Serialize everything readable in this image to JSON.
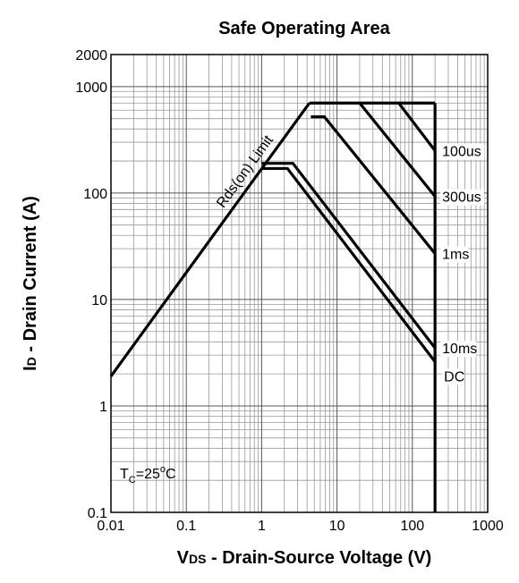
{
  "chart_data": {
    "type": "line",
    "title": "Safe Operating Area",
    "xlabel": [
      "V",
      "DS",
      " - Drain-Source Voltage (V)"
    ],
    "ylabel": [
      "I",
      "D",
      " - Drain Current (A)"
    ],
    "annotation": [
      "T",
      "C",
      "=25",
      "o",
      "C"
    ],
    "log_x": true,
    "log_y": true,
    "grid": true,
    "minor_grid": true,
    "color": "#000000",
    "xlim": [
      0.01,
      1000
    ],
    "xticks": [
      0.01,
      0.1,
      1,
      10,
      100,
      1000
    ],
    "ylim": [
      0.1,
      2000
    ],
    "yticks": [
      0.1,
      1,
      10,
      100,
      1000,
      2000
    ],
    "series": [
      {
        "name": "Rds(on) Limit",
        "x": [
          0.01,
          4.3
        ],
        "values": [
          1.9,
          700
        ]
      },
      {
        "name": "100us",
        "x": [
          4.3,
          66,
          200
        ],
        "values": [
          700,
          700,
          250
        ]
      },
      {
        "x": [
          66,
          200
        ],
        "values": [
          700,
          700
        ]
      },
      {
        "name": "300us",
        "x": [
          20,
          200
        ],
        "values": [
          700,
          93
        ]
      },
      {
        "name": "1ms",
        "x": [
          4.5,
          6.8,
          200
        ],
        "values": [
          520,
          520,
          27
        ]
      },
      {
        "name": "10ms",
        "x": [
          1,
          2.6,
          200
        ],
        "values": [
          190,
          190,
          3.5
        ]
      },
      {
        "name": "DC",
        "x": [
          1,
          2.2,
          200
        ],
        "values": [
          170,
          170,
          2.6
        ]
      },
      {
        "x": [
          200,
          200
        ],
        "values": [
          700,
          0.1
        ]
      }
    ]
  }
}
